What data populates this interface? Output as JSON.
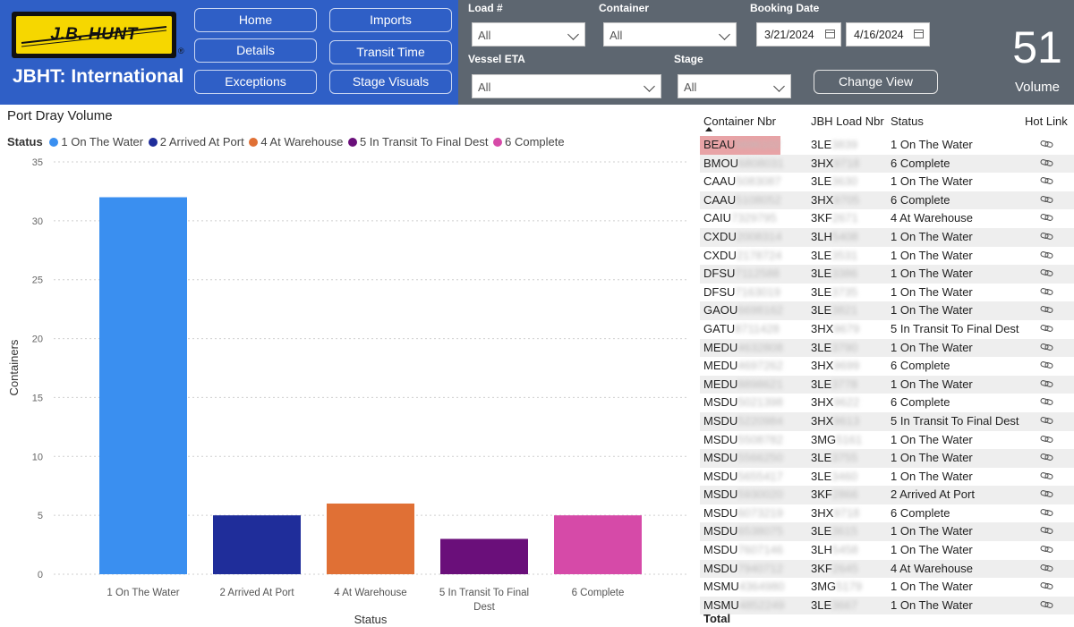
{
  "brand": {
    "logo_text": "J.B. HUNT",
    "reg_mark": "®",
    "title": "JBHT: International"
  },
  "nav": {
    "home": "Home",
    "imports": "Imports",
    "details": "Details",
    "transit_time": "Transit Time",
    "exceptions": "Exceptions",
    "stage_visuals": "Stage Visuals"
  },
  "filters": {
    "load_label": "Load #",
    "load_value": "All",
    "container_label": "Container",
    "container_value": "All",
    "booking_label": "Booking Date",
    "date_from": "3/21/2024",
    "date_to": "4/16/2024",
    "vessel_label": "Vessel ETA",
    "vessel_value": "All",
    "stage_label": "Stage",
    "stage_value": "All",
    "change_view": "Change View"
  },
  "kpi": {
    "value": "51",
    "label": "Volume"
  },
  "chart": {
    "title": "Port Dray Volume",
    "legend_title": "Status",
    "legend": [
      {
        "label": "1 On The Water",
        "color": "#3a8ff0"
      },
      {
        "label": "2 Arrived At Port",
        "color": "#1f2d9a"
      },
      {
        "label": "4 At Warehouse",
        "color": "#e07035"
      },
      {
        "label": "5 In Transit To Final Dest",
        "color": "#6a0f7a"
      },
      {
        "label": "6 Complete",
        "color": "#d64aa8"
      }
    ]
  },
  "chart_data": {
    "type": "bar",
    "title": "Port Dray Volume",
    "categories": [
      "1 On The Water",
      "2 Arrived At Port",
      "4 At Warehouse",
      "5 In Transit To Final Dest",
      "6 Complete"
    ],
    "category_lines": [
      [
        "1 On The Water"
      ],
      [
        "2 Arrived At Port"
      ],
      [
        "4 At Warehouse"
      ],
      [
        "5 In Transit To Final",
        "Dest"
      ],
      [
        "6 Complete"
      ]
    ],
    "values": [
      32,
      5,
      6,
      3,
      5
    ],
    "colors": [
      "#3a8ff0",
      "#1f2d9a",
      "#e07035",
      "#6a0f7a",
      "#d64aa8"
    ],
    "xlabel": "Status",
    "ylabel": "Containers",
    "ylim": [
      0,
      35
    ],
    "yticks": [
      0,
      5,
      10,
      15,
      20,
      25,
      30,
      35
    ],
    "grid": true
  },
  "table": {
    "headers": {
      "container": "Container Nbr",
      "load": "JBH Load Nbr",
      "status": "Status",
      "hot_link": "Hot Link"
    },
    "rows": [
      {
        "container": "BEAU",
        "container_hidden": "5696102",
        "load": "3LE",
        "load_hidden": "3839",
        "status": "1 On The Water"
      },
      {
        "container": "BMOU",
        "container_hidden": "6808031",
        "load": "3HX",
        "load_hidden": "9718",
        "status": "6 Complete"
      },
      {
        "container": "CAAU",
        "container_hidden": "5083087",
        "load": "3LE",
        "load_hidden": "3630",
        "status": "1 On The Water"
      },
      {
        "container": "CAAU",
        "container_hidden": "5108052",
        "load": "3HX",
        "load_hidden": "9705",
        "status": "6 Complete"
      },
      {
        "container": "CAIU",
        "container_hidden": "7329795",
        "load": "3KF",
        "load_hidden": "2671",
        "status": "4 At Warehouse"
      },
      {
        "container": "CXDU",
        "container_hidden": "2008314",
        "load": "3LH",
        "load_hidden": "5408",
        "status": "1 On The Water"
      },
      {
        "container": "CXDU",
        "container_hidden": "2178724",
        "load": "3LE",
        "load_hidden": "3531",
        "status": "1 On The Water"
      },
      {
        "container": "DFSU",
        "container_hidden": "7112588",
        "load": "3LE",
        "load_hidden": "3386",
        "status": "1 On The Water"
      },
      {
        "container": "DFSU",
        "container_hidden": "7163019",
        "load": "3LE",
        "load_hidden": "3735",
        "status": "1 On The Water"
      },
      {
        "container": "GAOU",
        "container_hidden": "6698162",
        "load": "3LE",
        "load_hidden": "3821",
        "status": "1 On The Water"
      },
      {
        "container": "GATU",
        "container_hidden": "8711428",
        "load": "3HX",
        "load_hidden": "9679",
        "status": "5 In Transit To Final Dest"
      },
      {
        "container": "MEDU",
        "container_hidden": "4632808",
        "load": "3LE",
        "load_hidden": "3790",
        "status": "1 On The Water"
      },
      {
        "container": "MEDU",
        "container_hidden": "4697262",
        "load": "3HX",
        "load_hidden": "9699",
        "status": "6 Complete"
      },
      {
        "container": "MEDU",
        "container_hidden": "8898621",
        "load": "3LE",
        "load_hidden": "3778",
        "status": "1 On The Water"
      },
      {
        "container": "MSDU",
        "container_hidden": "5021398",
        "load": "3HX",
        "load_hidden": "9622",
        "status": "6 Complete"
      },
      {
        "container": "MSDU",
        "container_hidden": "5220984",
        "load": "3HX",
        "load_hidden": "9613",
        "status": "5 In Transit To Final Dest"
      },
      {
        "container": "MSDU",
        "container_hidden": "5508782",
        "load": "3MG",
        "load_hidden": "5161",
        "status": "1 On The Water"
      },
      {
        "container": "MSDU",
        "container_hidden": "5566250",
        "load": "3LE",
        "load_hidden": "3755",
        "status": "1 On The Water"
      },
      {
        "container": "MSDU",
        "container_hidden": "5655417",
        "load": "3LE",
        "load_hidden": "3460",
        "status": "1 On The Water"
      },
      {
        "container": "MSDU",
        "container_hidden": "5930020",
        "load": "3KF",
        "load_hidden": "2866",
        "status": "2 Arrived At Port"
      },
      {
        "container": "MSDU",
        "container_hidden": "6073219",
        "load": "3HX",
        "load_hidden": "9718",
        "status": "6 Complete"
      },
      {
        "container": "MSDU",
        "container_hidden": "6538075",
        "load": "3LE",
        "load_hidden": "3615",
        "status": "1 On The Water"
      },
      {
        "container": "MSDU",
        "container_hidden": "7607146",
        "load": "3LH",
        "load_hidden": "5458",
        "status": "1 On The Water"
      },
      {
        "container": "MSDU",
        "container_hidden": "7940712",
        "load": "3KF",
        "load_hidden": "2645",
        "status": "4 At Warehouse"
      },
      {
        "container": "MSMU",
        "container_hidden": "4364980",
        "load": "3MG",
        "load_hidden": "5179",
        "status": "1 On The Water"
      },
      {
        "container": "MSMU",
        "container_hidden": "4852249",
        "load": "3LE",
        "load_hidden": "3667",
        "status": "1 On The Water"
      }
    ],
    "total_label": "Total"
  }
}
